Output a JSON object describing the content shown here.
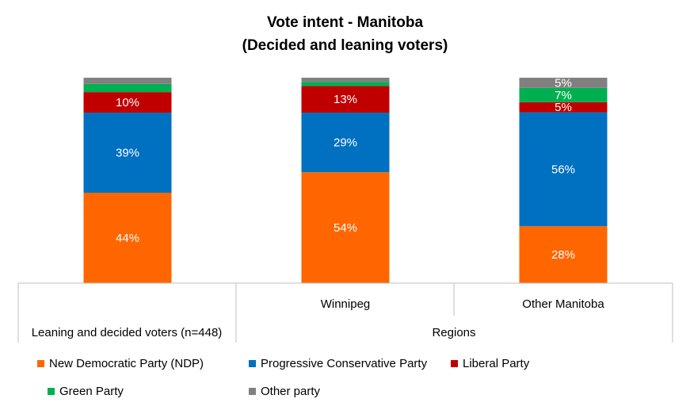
{
  "chart_data": {
    "type": "bar",
    "stacked": true,
    "title_line1": "Vote intent - Manitoba",
    "title_line2": "(Decided and leaning voters)",
    "ylim": [
      0,
      100
    ],
    "grid": false,
    "legend_position": "bottom",
    "categories": [
      "",
      "Winnipeg",
      "Other Manitoba"
    ],
    "category_groups": [
      {
        "label": "Leaning and decided voters (n=448)",
        "categories": [
          ""
        ]
      },
      {
        "label": "Regions",
        "categories": [
          "Winnipeg",
          "Other Manitoba"
        ]
      }
    ],
    "series": [
      {
        "name": "New Democratic Party (NDP)",
        "color": "#FF6600",
        "values": [
          44,
          54,
          28
        ],
        "labels": [
          "44%",
          "54%",
          "28%"
        ]
      },
      {
        "name": "Progressive Conservative Party",
        "color": "#0070C0",
        "values": [
          39,
          29,
          56
        ],
        "labels": [
          "39%",
          "29%",
          "56%"
        ]
      },
      {
        "name": "Liberal Party",
        "color": "#C00000",
        "values": [
          10,
          13,
          5
        ],
        "labels": [
          "10%",
          "13%",
          "5%"
        ]
      },
      {
        "name": "Green Party",
        "color": "#00B050",
        "values": [
          4,
          2,
          7
        ],
        "labels": [
          "",
          "",
          "7%"
        ]
      },
      {
        "name": "Other party",
        "color": "#808080",
        "values": [
          3,
          2,
          5
        ],
        "labels": [
          "",
          "",
          "5%"
        ]
      }
    ]
  }
}
